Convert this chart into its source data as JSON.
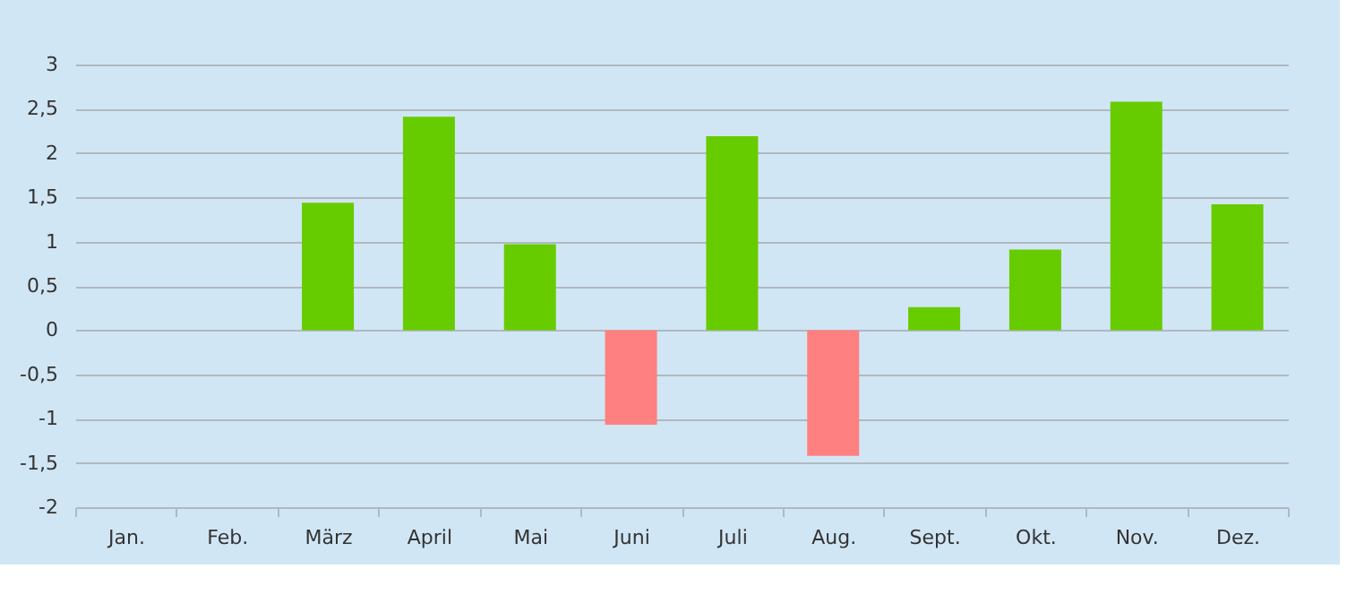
{
  "chart_data": {
    "type": "bar",
    "categories": [
      "Jan.",
      "Feb.",
      "März",
      "April",
      "Mai",
      "Juni",
      "Juli",
      "Aug.",
      "Sept.",
      "Okt.",
      "Nov.",
      "Dez."
    ],
    "values": [
      0,
      0,
      1.44,
      2.41,
      0.97,
      -1.07,
      2.19,
      -1.42,
      0.26,
      0.91,
      2.58,
      1.42
    ],
    "colors": [
      "#66cc00",
      "#66cc00",
      "#66cc00",
      "#66cc00",
      "#66cc00",
      "#ff8080",
      "#66cc00",
      "#ff8080",
      "#66cc00",
      "#66cc00",
      "#66cc00",
      "#66cc00"
    ],
    "ylim": [
      -2,
      3
    ],
    "yticks": [
      -2,
      {
        "value": -1.5,
        "label": "-1,5"
      },
      -1,
      {
        "value": -0.5,
        "label": "-0,5"
      },
      0,
      {
        "value": 0.5,
        "label": "0,5"
      },
      1,
      {
        "value": 1.5,
        "label": "1,5"
      },
      2,
      {
        "value": 2.5,
        "label": "2,5"
      },
      3
    ],
    "grid": "y"
  }
}
